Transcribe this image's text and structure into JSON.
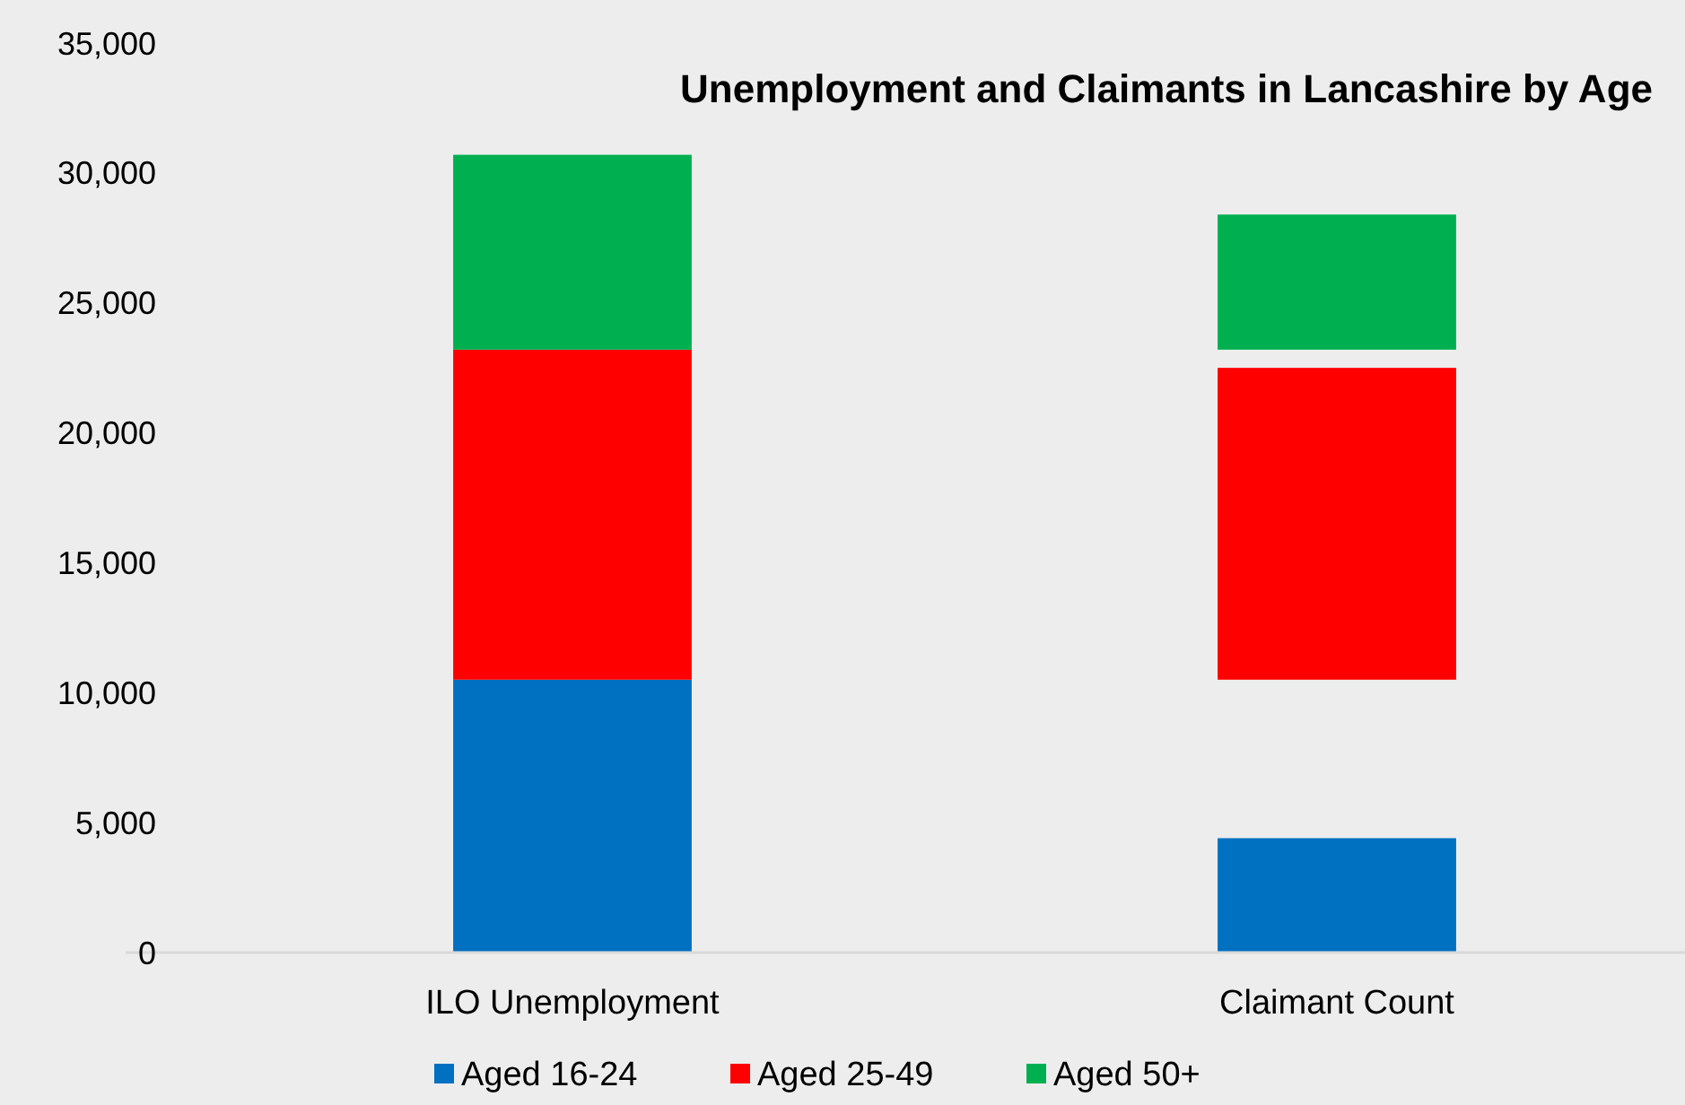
{
  "chart_data": {
    "type": "bar",
    "title": "Unemployment and Claimants in Lancashire by Age",
    "categories": [
      "ILO Unemployment",
      "Claimant Count"
    ],
    "series": [
      {
        "name": "Aged 16-24",
        "color": "#0070c0",
        "values": [
          10500,
          4400
        ],
        "base": [
          0,
          0
        ]
      },
      {
        "name": "Aged 25-49",
        "color": "#ff0000",
        "values": [
          12700,
          12000
        ],
        "base": [
          10500,
          10500
        ]
      },
      {
        "name": "Aged 50+",
        "color": "#00b050",
        "values": [
          7500,
          5200
        ],
        "base": [
          23200,
          23200
        ]
      }
    ],
    "ylim": [
      0,
      35000
    ],
    "yticks": [
      {
        "value": 0,
        "label": "0"
      },
      {
        "value": 5000,
        "label": "5,000"
      },
      {
        "value": 10000,
        "label": "10,000"
      },
      {
        "value": 15000,
        "label": "15,000"
      },
      {
        "value": 20000,
        "label": "20,000"
      },
      {
        "value": 25000,
        "label": "25,000"
      },
      {
        "value": 30000,
        "label": "30,000"
      },
      {
        "value": 35000,
        "label": "35,000"
      }
    ],
    "grid": false,
    "legend": "bottom"
  }
}
